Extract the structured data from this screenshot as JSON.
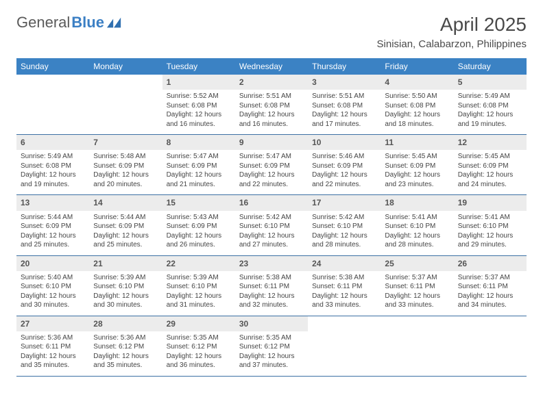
{
  "logo": {
    "text_general": "General",
    "text_blue": "Blue"
  },
  "title": "April 2025",
  "location": "Sinisian, Calabarzon, Philippines",
  "colors": {
    "header_bg": "#3b82c4",
    "header_fg": "#ffffff",
    "daynum_bg": "#ececec",
    "border": "#3b6fa3",
    "text": "#444444",
    "logo_gray": "#5a5a5a",
    "logo_blue": "#3b7fc4"
  },
  "day_headers": [
    "Sunday",
    "Monday",
    "Tuesday",
    "Wednesday",
    "Thursday",
    "Friday",
    "Saturday"
  ],
  "weeks": [
    [
      null,
      null,
      {
        "n": "1",
        "sr": "5:52 AM",
        "ss": "6:08 PM",
        "dl": "12 hours and 16 minutes."
      },
      {
        "n": "2",
        "sr": "5:51 AM",
        "ss": "6:08 PM",
        "dl": "12 hours and 16 minutes."
      },
      {
        "n": "3",
        "sr": "5:51 AM",
        "ss": "6:08 PM",
        "dl": "12 hours and 17 minutes."
      },
      {
        "n": "4",
        "sr": "5:50 AM",
        "ss": "6:08 PM",
        "dl": "12 hours and 18 minutes."
      },
      {
        "n": "5",
        "sr": "5:49 AM",
        "ss": "6:08 PM",
        "dl": "12 hours and 19 minutes."
      }
    ],
    [
      {
        "n": "6",
        "sr": "5:49 AM",
        "ss": "6:08 PM",
        "dl": "12 hours and 19 minutes."
      },
      {
        "n": "7",
        "sr": "5:48 AM",
        "ss": "6:09 PM",
        "dl": "12 hours and 20 minutes."
      },
      {
        "n": "8",
        "sr": "5:47 AM",
        "ss": "6:09 PM",
        "dl": "12 hours and 21 minutes."
      },
      {
        "n": "9",
        "sr": "5:47 AM",
        "ss": "6:09 PM",
        "dl": "12 hours and 22 minutes."
      },
      {
        "n": "10",
        "sr": "5:46 AM",
        "ss": "6:09 PM",
        "dl": "12 hours and 22 minutes."
      },
      {
        "n": "11",
        "sr": "5:45 AM",
        "ss": "6:09 PM",
        "dl": "12 hours and 23 minutes."
      },
      {
        "n": "12",
        "sr": "5:45 AM",
        "ss": "6:09 PM",
        "dl": "12 hours and 24 minutes."
      }
    ],
    [
      {
        "n": "13",
        "sr": "5:44 AM",
        "ss": "6:09 PM",
        "dl": "12 hours and 25 minutes."
      },
      {
        "n": "14",
        "sr": "5:44 AM",
        "ss": "6:09 PM",
        "dl": "12 hours and 25 minutes."
      },
      {
        "n": "15",
        "sr": "5:43 AM",
        "ss": "6:09 PM",
        "dl": "12 hours and 26 minutes."
      },
      {
        "n": "16",
        "sr": "5:42 AM",
        "ss": "6:10 PM",
        "dl": "12 hours and 27 minutes."
      },
      {
        "n": "17",
        "sr": "5:42 AM",
        "ss": "6:10 PM",
        "dl": "12 hours and 28 minutes."
      },
      {
        "n": "18",
        "sr": "5:41 AM",
        "ss": "6:10 PM",
        "dl": "12 hours and 28 minutes."
      },
      {
        "n": "19",
        "sr": "5:41 AM",
        "ss": "6:10 PM",
        "dl": "12 hours and 29 minutes."
      }
    ],
    [
      {
        "n": "20",
        "sr": "5:40 AM",
        "ss": "6:10 PM",
        "dl": "12 hours and 30 minutes."
      },
      {
        "n": "21",
        "sr": "5:39 AM",
        "ss": "6:10 PM",
        "dl": "12 hours and 30 minutes."
      },
      {
        "n": "22",
        "sr": "5:39 AM",
        "ss": "6:10 PM",
        "dl": "12 hours and 31 minutes."
      },
      {
        "n": "23",
        "sr": "5:38 AM",
        "ss": "6:11 PM",
        "dl": "12 hours and 32 minutes."
      },
      {
        "n": "24",
        "sr": "5:38 AM",
        "ss": "6:11 PM",
        "dl": "12 hours and 33 minutes."
      },
      {
        "n": "25",
        "sr": "5:37 AM",
        "ss": "6:11 PM",
        "dl": "12 hours and 33 minutes."
      },
      {
        "n": "26",
        "sr": "5:37 AM",
        "ss": "6:11 PM",
        "dl": "12 hours and 34 minutes."
      }
    ],
    [
      {
        "n": "27",
        "sr": "5:36 AM",
        "ss": "6:11 PM",
        "dl": "12 hours and 35 minutes."
      },
      {
        "n": "28",
        "sr": "5:36 AM",
        "ss": "6:12 PM",
        "dl": "12 hours and 35 minutes."
      },
      {
        "n": "29",
        "sr": "5:35 AM",
        "ss": "6:12 PM",
        "dl": "12 hours and 36 minutes."
      },
      {
        "n": "30",
        "sr": "5:35 AM",
        "ss": "6:12 PM",
        "dl": "12 hours and 37 minutes."
      },
      null,
      null,
      null
    ]
  ],
  "labels": {
    "sunrise": "Sunrise:",
    "sunset": "Sunset:",
    "daylight": "Daylight:"
  }
}
